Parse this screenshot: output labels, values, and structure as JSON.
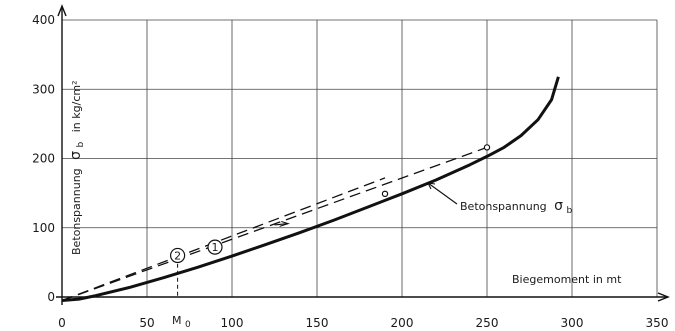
{
  "chart_data": {
    "type": "line",
    "xlabel": "Biegemoment in mt",
    "ylabel_main": "Betonspannung",
    "ylabel_symbol": "σ",
    "ylabel_sub": "b",
    "ylabel_unit": "in kg/cm²",
    "xlim": [
      0,
      350
    ],
    "ylim": [
      0,
      400
    ],
    "xticks": [
      0,
      50,
      100,
      150,
      200,
      250,
      300,
      350
    ],
    "yticks": [
      0,
      100,
      200,
      300,
      400
    ],
    "grid": true,
    "series": [
      {
        "name": "Betonspannung σb",
        "style": "solid",
        "x": [
          0,
          10,
          20,
          40,
          60,
          80,
          100,
          120,
          140,
          160,
          180,
          200,
          220,
          240,
          250,
          260,
          270,
          280,
          288,
          292
        ],
        "y": [
          -5,
          -3,
          2,
          14,
          28,
          43,
          59,
          76,
          93,
          111,
          130,
          149,
          169,
          191,
          203,
          216,
          233,
          256,
          285,
          318
        ]
      },
      {
        "name": "①",
        "style": "dashed",
        "x": [
          0,
          250
        ],
        "y": [
          -5,
          216
        ]
      },
      {
        "name": "②",
        "style": "dashed",
        "x": [
          0,
          190
        ],
        "y": [
          -5,
          172
        ]
      }
    ],
    "markers": [
      {
        "x": 190,
        "y": 149
      },
      {
        "x": 250,
        "y": 216
      }
    ],
    "annotations": {
      "mo_label": "M",
      "mo_sub": "0",
      "mo_x": 68,
      "curve1": "1",
      "curve1_x": 90,
      "curve1_y": 72,
      "curve2": "2",
      "curve2_x": 68,
      "curve2_y": 60,
      "sigma_label": "Betonspannung",
      "sigma_symbol": "σ",
      "sigma_sub": "b"
    }
  }
}
